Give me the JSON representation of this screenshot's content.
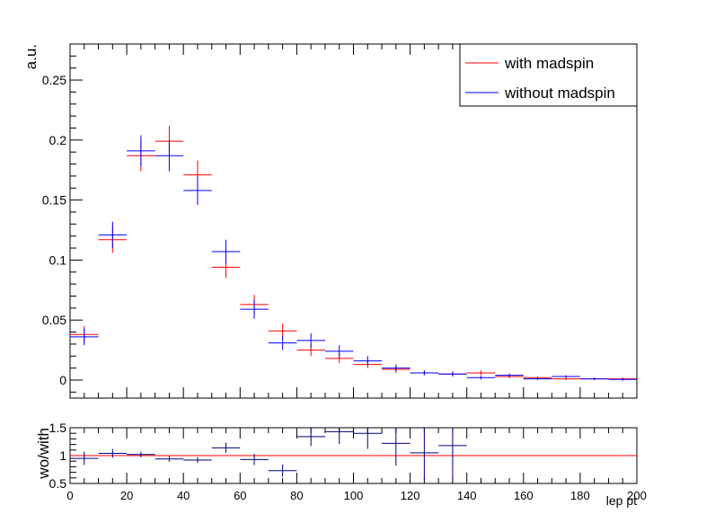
{
  "chart_data": [
    {
      "type": "scatter",
      "title": "",
      "ylabel": "a.u.",
      "xlabel": "",
      "xlim": [
        0,
        200
      ],
      "ylim": [
        -0.015,
        0.28
      ],
      "yticks": [
        0,
        0.05,
        0.1,
        0.15,
        0.2,
        0.25
      ],
      "ytick_labels": [
        "0",
        "0.05",
        "0.1",
        "0.15",
        "0.2",
        "0.25"
      ],
      "bin_width": 10,
      "legend": {
        "placement": "top-right",
        "entries": [
          {
            "label": "with madspin",
            "color": "#ff0000"
          },
          {
            "label": "without madspin",
            "color": "#0000ff"
          }
        ]
      },
      "series": [
        {
          "name": "with madspin",
          "color": "#ff0000",
          "x": [
            5,
            15,
            25,
            35,
            45,
            55,
            65,
            75,
            85,
            95,
            105,
            115,
            125,
            135,
            145,
            155,
            165,
            175,
            185,
            195
          ],
          "y": [
            0.038,
            0.117,
            0.187,
            0.199,
            0.171,
            0.094,
            0.063,
            0.041,
            0.025,
            0.018,
            0.013,
            0.009,
            0.006,
            0.005,
            0.006,
            0.003,
            0.002,
            0.001,
            0.001,
            0.001
          ],
          "yerr": [
            0.007,
            0.011,
            0.013,
            0.013,
            0.012,
            0.009,
            0.008,
            0.006,
            0.005,
            0.004,
            0.003,
            0.003,
            0.002,
            0.002,
            0.002,
            0.0015,
            0.001,
            0.001,
            0.001,
            0.001
          ]
        },
        {
          "name": "without madspin",
          "color": "#0000ff",
          "x": [
            5,
            15,
            25,
            35,
            45,
            55,
            65,
            75,
            85,
            95,
            105,
            115,
            125,
            135,
            145,
            155,
            165,
            175,
            185,
            195
          ],
          "y": [
            0.036,
            0.121,
            0.191,
            0.187,
            0.158,
            0.107,
            0.059,
            0.031,
            0.033,
            0.024,
            0.016,
            0.01,
            0.006,
            0.005,
            0.002,
            0.004,
            0.001,
            0.003,
            0.001,
            0.0005
          ],
          "yerr": [
            0.007,
            0.011,
            0.013,
            0.013,
            0.012,
            0.01,
            0.008,
            0.006,
            0.006,
            0.005,
            0.004,
            0.003,
            0.002,
            0.002,
            0.0015,
            0.0015,
            0.001,
            0.001,
            0.001,
            0.001
          ]
        }
      ]
    },
    {
      "type": "scatter",
      "title": "",
      "ylabel": "wo/with",
      "xlabel": "lep pt",
      "xlim": [
        0,
        200
      ],
      "ylim": [
        0.5,
        1.5
      ],
      "yticks": [
        0.5,
        1,
        1.5
      ],
      "ytick_labels": [
        "0.5",
        "1",
        "1.5"
      ],
      "xticks": [
        0,
        20,
        40,
        60,
        80,
        100,
        120,
        140,
        160,
        180,
        200
      ],
      "xtick_labels": [
        "0",
        "20",
        "40",
        "60",
        "80",
        "100",
        "120",
        "140",
        "160",
        "180",
        "200"
      ],
      "reference_line": {
        "y": 1,
        "color": "#ff0000"
      },
      "bin_width": 10,
      "series": [
        {
          "color": "#00007f",
          "x": [
            5,
            15,
            25,
            35,
            45,
            55,
            65,
            75,
            85,
            95,
            105,
            115,
            125,
            135
          ],
          "y": [
            0.95,
            1.04,
            1.02,
            0.94,
            0.92,
            1.14,
            0.93,
            0.73,
            1.34,
            1.43,
            1.4,
            1.22,
            1.05,
            1.18
          ],
          "yerr": [
            0.12,
            0.08,
            0.05,
            0.05,
            0.05,
            0.09,
            0.1,
            0.11,
            0.17,
            0.22,
            0.28,
            0.4,
            0.5,
            0.62
          ]
        }
      ]
    }
  ]
}
